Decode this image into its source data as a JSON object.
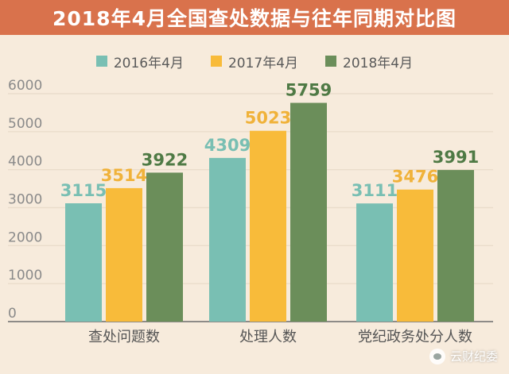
{
  "title": "2018年4月全国查处数据与往年同期对比图",
  "watermark": "云财纪委",
  "colors": {
    "title_bg": "#d9724c",
    "background": "#f7ebdc",
    "series_2016": "#79bfb3",
    "series_2017": "#f8bb3a",
    "series_2018": "#6b8e5a",
    "value_2016": "#79bfb3",
    "value_2017": "#f0b23a",
    "value_2018": "#4f7a45"
  },
  "chart_data": {
    "type": "bar",
    "title": "2018年4月全国查处数据与往年同期对比图",
    "categories": [
      "查处问题数",
      "处理人数",
      "党纪政务处分人数"
    ],
    "series": [
      {
        "name": "2016年4月",
        "values": [
          3115,
          4309,
          3111
        ]
      },
      {
        "name": "2017年4月",
        "values": [
          3514,
          5023,
          3476
        ]
      },
      {
        "name": "2018年4月",
        "values": [
          3922,
          5759,
          3991
        ]
      }
    ],
    "ylim": [
      0,
      6000
    ],
    "yticks": [
      0,
      1000,
      2000,
      3000,
      4000,
      5000,
      6000
    ],
    "grid": true,
    "legend": "top-center",
    "xlabel": "",
    "ylabel": ""
  }
}
